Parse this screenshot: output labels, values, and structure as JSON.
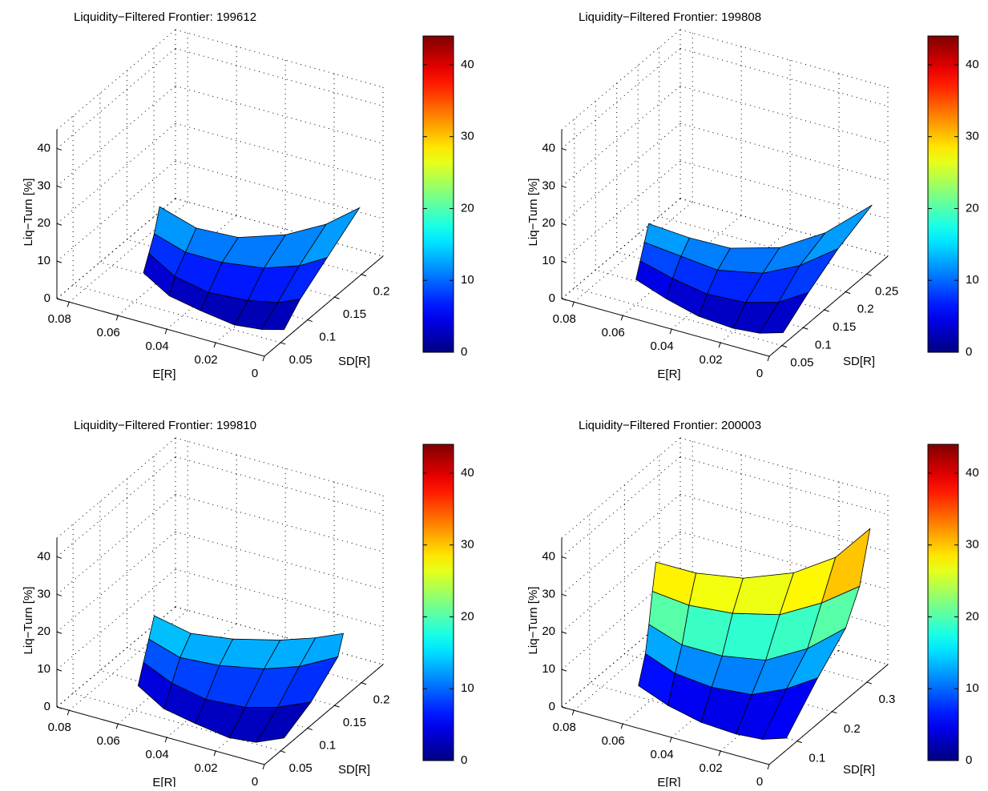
{
  "chart_data": [
    {
      "type": "surface",
      "title": "Liquidity−Filtered Frontier: 199612",
      "xlabel": "E[R]",
      "ylabel": "SD[R]",
      "zlabel": "Liq−Turn [%]",
      "x": [
        0.065,
        0.05,
        0.035,
        0.02,
        0.01,
        0.003
      ],
      "y": [
        [
          0.09,
          0.07,
          0.06,
          0.055,
          0.06,
          0.07
        ],
        [
          0.1,
          0.08,
          0.075,
          0.08,
          0.09,
          0.1
        ],
        [
          0.11,
          0.1,
          0.1,
          0.11,
          0.13,
          0.15
        ],
        [
          0.12,
          0.12,
          0.13,
          0.15,
          0.18,
          0.21
        ]
      ],
      "z": [
        [
          2,
          1,
          1,
          0.5,
          0.5,
          0.5
        ],
        [
          6,
          5,
          4,
          4,
          4,
          5
        ],
        [
          10,
          9,
          9,
          9,
          9,
          10
        ],
        [
          16,
          13,
          12,
          13,
          14,
          16
        ]
      ],
      "xlim": [
        0,
        0.085
      ],
      "xticks": [
        0,
        0.02,
        0.04,
        0.06,
        0.08
      ],
      "ylim": [
        0.02,
        0.24
      ],
      "yticks": [
        0.05,
        0.1,
        0.15,
        0.2
      ],
      "zlim": [
        0,
        45
      ],
      "zticks": [
        0,
        10,
        20,
        30,
        40
      ],
      "clim": [
        0,
        44
      ],
      "cticks": [
        0,
        10,
        20,
        30,
        40
      ],
      "colormap": "jet",
      "grid": true
    },
    {
      "type": "surface",
      "title": "Liquidity−Filtered Frontier: 199808",
      "xlabel": "E[R]",
      "ylabel": "SD[R]",
      "zlabel": "Liq−Turn [%]",
      "x": [
        0.065,
        0.05,
        0.035,
        0.02,
        0.01,
        0.003
      ],
      "y": [
        [
          0.08,
          0.065,
          0.055,
          0.05,
          0.055,
          0.07
        ],
        [
          0.09,
          0.08,
          0.075,
          0.08,
          0.1,
          0.13
        ],
        [
          0.1,
          0.1,
          0.1,
          0.12,
          0.15,
          0.2
        ],
        [
          0.11,
          0.12,
          0.13,
          0.16,
          0.21,
          0.28
        ]
      ],
      "z": [
        [
          3,
          2,
          1,
          1,
          1,
          1
        ],
        [
          7,
          6,
          5,
          5,
          5,
          6
        ],
        [
          11,
          10,
          9,
          9,
          10,
          11
        ],
        [
          15,
          13,
          12,
          12,
          13,
          15
        ]
      ],
      "xlim": [
        0,
        0.085
      ],
      "xticks": [
        0,
        0.02,
        0.04,
        0.06,
        0.08
      ],
      "ylim": [
        0.02,
        0.3
      ],
      "yticks": [
        0.05,
        0.1,
        0.15,
        0.2,
        0.25
      ],
      "zlim": [
        0,
        45
      ],
      "zticks": [
        0,
        10,
        20,
        30,
        40
      ],
      "clim": [
        0,
        44
      ],
      "cticks": [
        0,
        10,
        20,
        30,
        40
      ],
      "colormap": "jet",
      "grid": true
    },
    {
      "type": "surface",
      "title": "Liquidity−Filtered Frontier: 199810",
      "xlabel": "E[R]",
      "ylabel": "SD[R]",
      "zlabel": "Liq−Turn [%]",
      "x": [
        0.065,
        0.05,
        0.035,
        0.02,
        0.01,
        0.003
      ],
      "y": [
        [
          0.08,
          0.06,
          0.05,
          0.045,
          0.05,
          0.07
        ],
        [
          0.09,
          0.075,
          0.07,
          0.075,
          0.09,
          0.12
        ],
        [
          0.1,
          0.09,
          0.095,
          0.11,
          0.13,
          0.17
        ],
        [
          0.11,
          0.11,
          0.12,
          0.14,
          0.16,
          0.18
        ]
      ],
      "z": [
        [
          2,
          1,
          1,
          0.5,
          0.5,
          0.5
        ],
        [
          7,
          6,
          5,
          5,
          5,
          4
        ],
        [
          12,
          11,
          11,
          11,
          11,
          10
        ],
        [
          17,
          15,
          15,
          15,
          15,
          15
        ]
      ],
      "xlim": [
        0,
        0.085
      ],
      "xticks": [
        0,
        0.02,
        0.04,
        0.06,
        0.08
      ],
      "ylim": [
        0.02,
        0.24
      ],
      "yticks": [
        0.05,
        0.1,
        0.15,
        0.2
      ],
      "zlim": [
        0,
        45
      ],
      "zticks": [
        0,
        10,
        20,
        30,
        40
      ],
      "clim": [
        0,
        44
      ],
      "cticks": [
        0,
        10,
        20,
        30,
        40
      ],
      "colormap": "jet",
      "grid": true
    },
    {
      "type": "surface",
      "title": "Liquidity−Filtered Frontier: 200003",
      "xlabel": "E[R]",
      "ylabel": "SD[R]",
      "zlabel": "Liq−Turn [%]",
      "x": [
        0.065,
        0.05,
        0.035,
        0.02,
        0.01,
        0.003
      ],
      "y": [
        [
          0.1,
          0.08,
          0.07,
          0.065,
          0.07,
          0.09
        ],
        [
          0.12,
          0.1,
          0.1,
          0.11,
          0.14,
          0.18
        ],
        [
          0.13,
          0.12,
          0.13,
          0.15,
          0.2,
          0.26
        ],
        [
          0.14,
          0.14,
          0.16,
          0.19,
          0.24,
          0.3
        ],
        [
          0.15,
          0.16,
          0.19,
          0.23,
          0.28,
          0.33
        ]
      ],
      "z": [
        [
          3,
          2,
          1,
          1,
          1,
          1
        ],
        [
          10,
          9,
          8,
          8,
          9,
          10
        ],
        [
          17,
          15,
          14,
          14,
          15,
          17
        ],
        [
          25,
          24,
          23,
          23,
          24,
          25
        ],
        [
          32,
          31,
          30,
          31,
          33,
          38
        ]
      ],
      "xlim": [
        0,
        0.085
      ],
      "xticks": [
        0,
        0.02,
        0.04,
        0.06,
        0.08
      ],
      "ylim": [
        0.02,
        0.36
      ],
      "yticks": [
        0.1,
        0.2,
        0.3
      ],
      "zlim": [
        0,
        45
      ],
      "zticks": [
        0,
        10,
        20,
        30,
        40
      ],
      "clim": [
        0,
        44
      ],
      "cticks": [
        0,
        10,
        20,
        30,
        40
      ],
      "colormap": "jet",
      "grid": true
    }
  ]
}
